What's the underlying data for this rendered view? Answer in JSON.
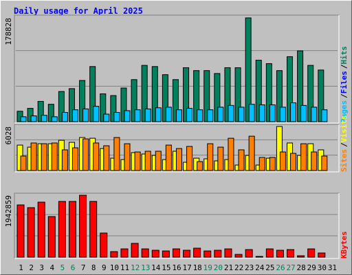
{
  "title": "Daily usage for April 2025",
  "legend_separator": "/",
  "chart_data": [
    {
      "type": "bar",
      "ylim": [
        0,
        178828
      ],
      "yticks": [
        178828
      ],
      "series": [
        {
          "name": "Hits",
          "color": "#00805c",
          "values": [
            18000,
            23000,
            35000,
            30000,
            52000,
            57000,
            71000,
            95000,
            48000,
            45000,
            58000,
            72500,
            97000,
            95000,
            81000,
            72500,
            93000,
            88000,
            88000,
            83000,
            93000,
            93000,
            178828,
            106000,
            100000,
            88000,
            112000,
            122000,
            97000,
            89000,
            0
          ]
        },
        {
          "name": "Files",
          "color": "#0000ff",
          "values": [
            null,
            null,
            null,
            null,
            null,
            null,
            null,
            null,
            null,
            null,
            null,
            null,
            null,
            null,
            null,
            null,
            null,
            null,
            null,
            null,
            null,
            null,
            null,
            null,
            null,
            null,
            null,
            null,
            null,
            null,
            null
          ]
        },
        {
          "name": "Pages",
          "color": "#00c0ff",
          "values": [
            8500,
            10000,
            11000,
            8500,
            16000,
            20500,
            22000,
            26500,
            13000,
            16000,
            19000,
            20500,
            22000,
            24000,
            25000,
            20500,
            23000,
            20500,
            20500,
            25000,
            28000,
            25000,
            30000,
            29000,
            29000,
            25000,
            32500,
            28000,
            25000,
            20500,
            0
          ]
        }
      ]
    },
    {
      "type": "bar",
      "ylim": [
        0,
        6028
      ],
      "yticks": [
        6028
      ],
      "series": [
        {
          "name": "Visits",
          "color": "#ffff00",
          "values": [
            3480,
            3200,
            3670,
            3670,
            4140,
            3860,
            4520,
            4420,
            3010,
            1690,
            1500,
            2450,
            2260,
            2070,
            1500,
            2640,
            1130,
            1690,
            1600,
            1320,
            1500,
            750,
            2070,
            750,
            1690,
            6028,
            3770,
            2070,
            3670,
            2830,
            0
          ]
        },
        {
          "name": "Sites",
          "color": "#ff8000",
          "values": [
            1980,
            3770,
            3670,
            3770,
            2830,
            3110,
            4330,
            3770,
            3390,
            4520,
            3670,
            2540,
            2640,
            2640,
            3480,
            3010,
            3300,
            1220,
            3670,
            3200,
            4420,
            2830,
            4700,
            1790,
            1790,
            2540,
            2350,
            3670,
            2540,
            1980,
            0
          ]
        }
      ]
    },
    {
      "type": "bar",
      "ylim": [
        0,
        1942859
      ],
      "yticks": [
        1942859
      ],
      "categories": [
        "1",
        "2",
        "3",
        "4",
        "5",
        "6",
        "7",
        "8",
        "9",
        "10",
        "11",
        "12",
        "13",
        "14",
        "15",
        "16",
        "17",
        "18",
        "19",
        "20",
        "21",
        "22",
        "23",
        "24",
        "25",
        "26",
        "27",
        "28",
        "29",
        "30",
        "31"
      ],
      "category_colors": [
        "#000000",
        "#000000",
        "#000000",
        "#000000",
        "#00805c",
        "#00805c",
        "#000000",
        "#000000",
        "#000000",
        "#000000",
        "#000000",
        "#00805c",
        "#00805c",
        "#000000",
        "#000000",
        "#000000",
        "#000000",
        "#000000",
        "#00805c",
        "#00805c",
        "#000000",
        "#000000",
        "#000000",
        "#000000",
        "#000000",
        "#00805c",
        "#00805c",
        "#000000",
        "#000000",
        "#000000",
        "#000000"
      ],
      "series": [
        {
          "name": "KBytes",
          "color": "#ff0000",
          "values": [
            1640000,
            1554000,
            1727000,
            1274000,
            1749000,
            1749000,
            1942859,
            1749000,
            756000,
            173000,
            259000,
            432000,
            259000,
            216000,
            194000,
            259000,
            216000,
            281000,
            194000,
            216000,
            259000,
            86000,
            237000,
            22000,
            259000,
            216000,
            237000,
            43000,
            259000,
            130000,
            0
          ]
        }
      ]
    }
  ]
}
